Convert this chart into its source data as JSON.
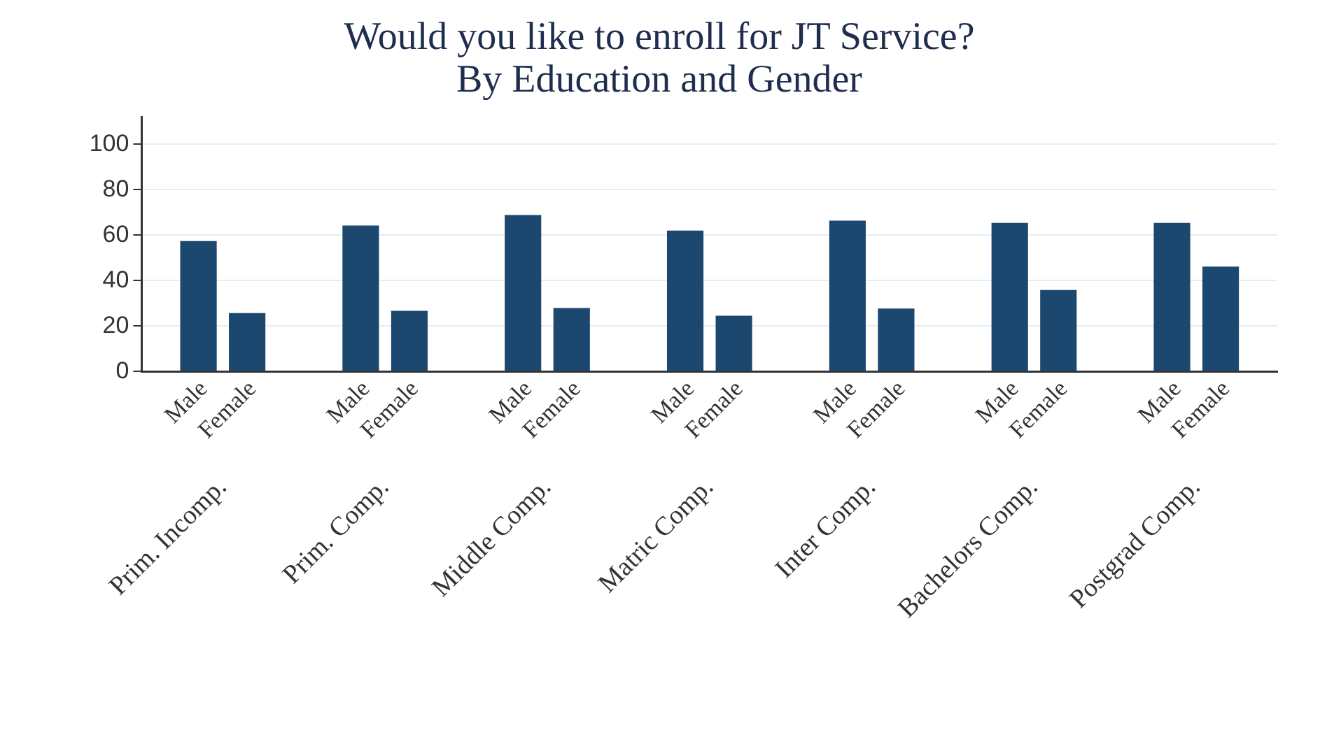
{
  "chart_data": {
    "type": "bar",
    "title": "Would you like to enroll for JT Service?",
    "subtitle": "By Education and Gender",
    "categories": [
      "Prim. Incomp.",
      "Prim. Comp.",
      "Middle Comp.",
      "Matric Comp.",
      "Inter Comp.",
      "Bachelors Comp.",
      "Postgrad Comp."
    ],
    "series": [
      {
        "name": "Male",
        "color": "#1c4870",
        "values": [
          57.4,
          64.2,
          68.8,
          62.0,
          66.4,
          65.4,
          65.4
        ]
      },
      {
        "name": "Female",
        "color": "#1c4870",
        "values": [
          25.7,
          26.7,
          27.9,
          24.5,
          27.7,
          35.8,
          46.1
        ]
      }
    ],
    "ylim": [
      0,
      112
    ],
    "yticks": [
      0,
      20,
      40,
      60,
      80,
      100
    ],
    "grid": "y",
    "legend": false
  }
}
